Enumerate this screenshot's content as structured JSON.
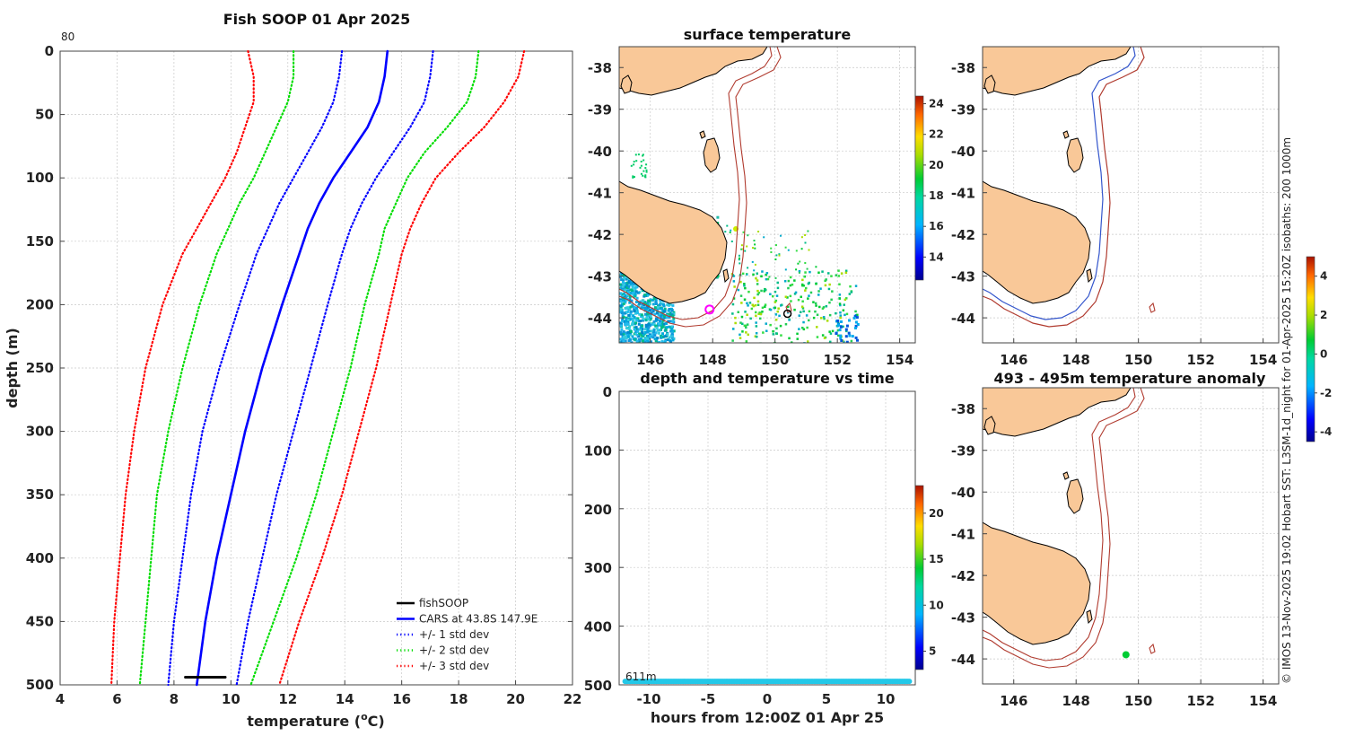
{
  "profile": {
    "title": "Fish SOOP 01 Apr 2025",
    "corner_label": "80",
    "xlabel": "temperature (",
    "xlabel_sup": "o",
    "xlabel_end": "C)",
    "ylabel": "depth (m)",
    "legend": [
      {
        "label": "fishSOOP",
        "color": "#000000",
        "style": "solid"
      },
      {
        "label": "CARS at 43.8S 147.9E",
        "color": "#0000ff",
        "style": "solid"
      },
      {
        "label": "+/- 1 std dev",
        "color": "#0000ff",
        "style": "dotted"
      },
      {
        "label": "+/- 2 std dev",
        "color": "#00dd00",
        "style": "dotted"
      },
      {
        "label": "+/- 3 std dev",
        "color": "#ff0000",
        "style": "dotted"
      }
    ]
  },
  "map1": {
    "title": "surface temperature",
    "colorbar_ticks": [
      "24",
      "22",
      "20",
      "18",
      "16",
      "14"
    ]
  },
  "map2": {
    "title": "",
    "colorbar_ticks": [
      "4",
      "2",
      "0",
      "-2",
      "-4"
    ]
  },
  "map3": {
    "title": "493 - 495m temperature anomaly"
  },
  "timeplot": {
    "title": "depth and temperature vs time",
    "xlabel": "hours from 12:00Z 01 Apr 25",
    "depth_label": "611m",
    "colorbar_ticks": [
      "20",
      "15",
      "10",
      "5"
    ]
  },
  "side_note": "© IMOS 13-Nov-2025 19:02 Hobart SST: L3SM-1d_night for 01-Apr-2025 15:20Z isobaths: 200  1000m",
  "chart_data": [
    {
      "type": "line",
      "title": "Fish SOOP 01 Apr 2025",
      "xlabel": "temperature (oC)",
      "ylabel": "depth (m)",
      "xlim": [
        4,
        22
      ],
      "ylim": [
        500,
        0
      ],
      "xticks": [
        4,
        6,
        8,
        10,
        12,
        14,
        16,
        18,
        20,
        22
      ],
      "yticks": [
        0,
        50,
        100,
        150,
        200,
        250,
        300,
        350,
        400,
        450,
        500
      ],
      "series": [
        {
          "name": "CARS at 43.8S 147.9E",
          "color": "#0000ff",
          "dash": "solid",
          "depth": [
            0,
            20,
            40,
            60,
            80,
            100,
            120,
            140,
            160,
            200,
            250,
            300,
            350,
            400,
            450,
            500
          ],
          "temp": [
            15.5,
            15.4,
            15.2,
            14.8,
            14.2,
            13.6,
            13.1,
            12.7,
            12.4,
            11.8,
            11.1,
            10.5,
            10.0,
            9.5,
            9.1,
            8.8
          ]
        },
        {
          "name": "+/- 1 std dev (high)",
          "color": "#0000ff",
          "dash": "dotted",
          "depth": [
            0,
            20,
            40,
            60,
            80,
            100,
            120,
            140,
            160,
            200,
            250,
            300,
            350,
            400,
            450,
            500
          ],
          "temp": [
            17.1,
            17.0,
            16.8,
            16.3,
            15.7,
            15.1,
            14.6,
            14.2,
            13.9,
            13.4,
            12.8,
            12.2,
            11.6,
            11.1,
            10.6,
            10.2
          ]
        },
        {
          "name": "+/- 1 std dev (low)",
          "color": "#0000ff",
          "dash": "dotted",
          "depth": [
            0,
            20,
            40,
            60,
            80,
            100,
            120,
            140,
            160,
            200,
            250,
            300,
            350,
            400,
            450,
            500
          ],
          "temp": [
            13.9,
            13.8,
            13.6,
            13.2,
            12.7,
            12.2,
            11.7,
            11.3,
            10.9,
            10.3,
            9.6,
            9.0,
            8.6,
            8.3,
            8.0,
            7.8
          ]
        },
        {
          "name": "+/- 2 std dev (high)",
          "color": "#00dd00",
          "dash": "dotted",
          "depth": [
            0,
            20,
            40,
            60,
            80,
            100,
            120,
            140,
            160,
            200,
            250,
            300,
            350,
            400,
            450,
            500
          ],
          "temp": [
            18.7,
            18.6,
            18.3,
            17.6,
            16.8,
            16.2,
            15.8,
            15.4,
            15.2,
            14.7,
            14.2,
            13.6,
            13.0,
            12.3,
            11.5,
            10.7
          ]
        },
        {
          "name": "+/- 2 std dev (low)",
          "color": "#00dd00",
          "dash": "dotted",
          "depth": [
            0,
            20,
            40,
            60,
            80,
            100,
            120,
            140,
            160,
            200,
            250,
            300,
            350,
            400,
            450,
            500
          ],
          "temp": [
            12.2,
            12.2,
            12.0,
            11.6,
            11.2,
            10.8,
            10.3,
            9.9,
            9.5,
            8.9,
            8.3,
            7.8,
            7.4,
            7.2,
            7.0,
            6.8
          ]
        },
        {
          "name": "+/- 3 std dev (high)",
          "color": "#ff0000",
          "dash": "dotted",
          "depth": [
            0,
            20,
            40,
            60,
            80,
            100,
            120,
            140,
            160,
            200,
            250,
            300,
            350,
            400,
            450,
            500
          ],
          "temp": [
            20.3,
            20.1,
            19.6,
            18.9,
            18.0,
            17.2,
            16.7,
            16.3,
            16.0,
            15.6,
            15.1,
            14.5,
            13.9,
            13.2,
            12.4,
            11.7
          ]
        },
        {
          "name": "+/- 3 std dev (low)",
          "color": "#ff0000",
          "dash": "dotted",
          "depth": [
            0,
            20,
            40,
            60,
            80,
            100,
            120,
            140,
            160,
            200,
            250,
            300,
            350,
            400,
            450,
            500
          ],
          "temp": [
            10.6,
            10.8,
            10.8,
            10.5,
            10.2,
            9.8,
            9.3,
            8.8,
            8.3,
            7.6,
            7.0,
            6.6,
            6.3,
            6.1,
            5.9,
            5.8
          ]
        },
        {
          "name": "fishSOOP",
          "color": "#000000",
          "dash": "solid",
          "depth": [
            494,
            494,
            494,
            494
          ],
          "temp": [
            8.4,
            9.0,
            9.5,
            9.8
          ]
        }
      ]
    },
    {
      "type": "scatter",
      "title": "depth and temperature vs time",
      "xlabel": "hours from 12:00Z 01 Apr 25",
      "ylabel": "",
      "xlim": [
        -12.5,
        12.5
      ],
      "ylim": [
        500,
        0
      ],
      "xticks": [
        -10,
        -5,
        0,
        5,
        10
      ],
      "yticks": [
        0,
        100,
        200,
        300,
        400,
        500
      ],
      "colorbar": {
        "ticks": [
          5,
          10,
          15,
          20
        ],
        "range": [
          3,
          23
        ]
      },
      "points": {
        "hours_start": -12,
        "hours_end": 12,
        "depth": 494,
        "temp": 9
      }
    },
    {
      "type": "map",
      "title": "surface temperature",
      "xticks": [
        "146",
        "148",
        "150",
        "152",
        "154"
      ],
      "yticks": [
        "-38",
        "-39",
        "-40",
        "-41",
        "-42",
        "-43",
        "-44"
      ],
      "lon_range": [
        145,
        154.5
      ],
      "lat_range": [
        -44.6,
        -37.5
      ],
      "colorbar": {
        "ticks": [
          14,
          16,
          18,
          20,
          22,
          24
        ],
        "range": [
          12.5,
          24.5
        ]
      },
      "markers": [
        {
          "lon": 147.9,
          "lat": -43.8,
          "style": "magenta-circle"
        },
        {
          "lon": 150.4,
          "lat": -43.9,
          "style": "black-circle"
        }
      ]
    },
    {
      "type": "map",
      "title": "",
      "xticks": [
        "146",
        "148",
        "150",
        "152",
        "154"
      ],
      "yticks": [
        "-38",
        "-39",
        "-40",
        "-41",
        "-42",
        "-43",
        "-44"
      ],
      "lon_range": [
        145,
        154.5
      ],
      "lat_range": [
        -44.6,
        -37.5
      ],
      "colorbar": {
        "ticks": [
          -4,
          -2,
          0,
          2,
          4
        ],
        "range": [
          -4.5,
          5
        ]
      }
    },
    {
      "type": "map",
      "title": "493 - 495m temperature anomaly",
      "xticks": [
        "146",
        "148",
        "150",
        "152",
        "154"
      ],
      "yticks": [
        "-38",
        "-39",
        "-40",
        "-41",
        "-42",
        "-43",
        "-44"
      ],
      "lon_range": [
        145,
        154.5
      ],
      "lat_range": [
        -44.6,
        -37.5
      ],
      "markers": [
        {
          "lon": 149.6,
          "lat": -43.9,
          "style": "green-dot"
        }
      ]
    }
  ]
}
